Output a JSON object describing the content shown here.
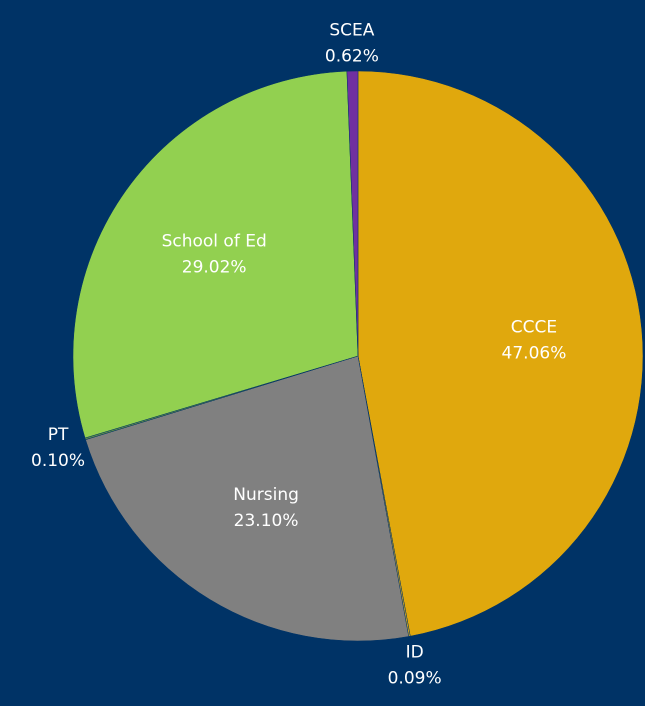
{
  "chart_data": {
    "type": "pie",
    "categories": [
      "CCCE",
      "ID",
      "Nursing",
      "PT",
      "School of Ed",
      "SCEA"
    ],
    "values": [
      47.06,
      0.09,
      23.1,
      0.1,
      29.02,
      0.62
    ],
    "value_labels": [
      "47.06%",
      "0.09%",
      "23.10%",
      "0.10%",
      "29.02%",
      "0.62%"
    ],
    "colors": [
      "#e0a80d",
      "#c9a227",
      "#808080",
      "#5a8a4a",
      "#92d050",
      "#7030a0"
    ]
  }
}
